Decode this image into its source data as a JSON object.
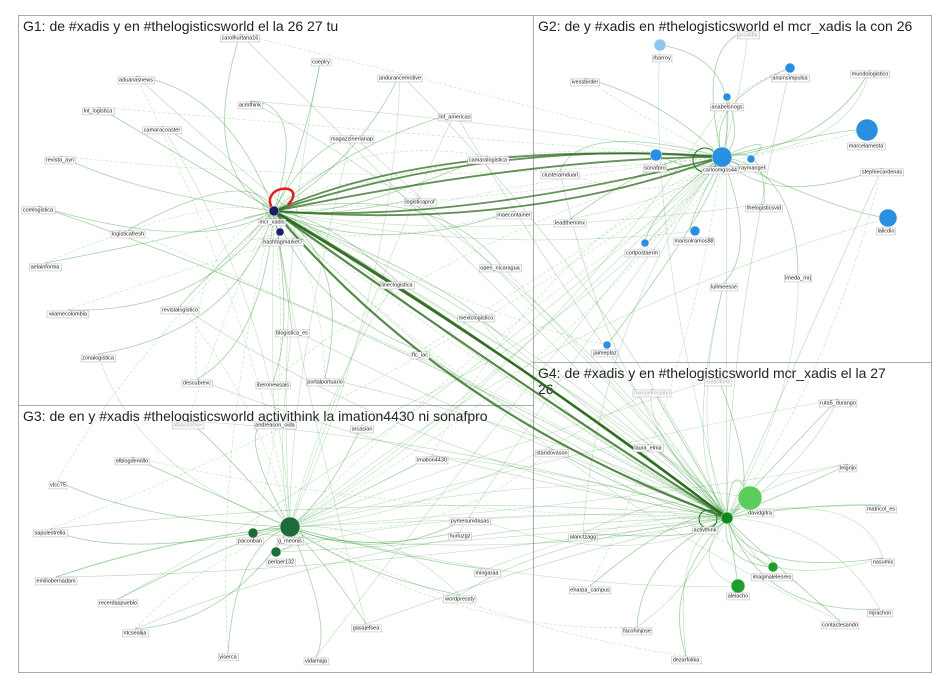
{
  "groups": [
    {
      "title": "G1: de #xadis y en #thelogisticsworld el la 26 27 tu",
      "nodes": [
        "carolhurtana16",
        "coeplry",
        "aduanasnews",
        "andurancemotive",
        "lnt_logistica",
        "acmthink",
        "lnf_americas",
        "magazzinerianap",
        "camaracoaster",
        "revista_ayn",
        "camaralogistica",
        "logisticaprof",
        "comlogistica",
        "mcr_xadis",
        "maecontainer",
        "logisticafresh",
        "hashtagmarket7",
        "aelainforma",
        "open_nicaragua",
        "lineclogistica",
        "revistalogistico",
        "mextclogistico",
        "wiamecolombia",
        "blogistica_es",
        "ftc_lac",
        "zonalogistica",
        "descubrevc",
        "portalportuario",
        "iberonewsais"
      ]
    },
    {
      "title": "G2: de y #xadis en #thelogisticsworld el mcr_xadis la con 26",
      "nodes": [
        "rbarroy",
        "prsaldia",
        "ansmsimpulsa",
        "mundologistico",
        "ivessbirder",
        "anabelsnogs",
        "marcelamesta",
        "sonafpro",
        "carlosmgss44",
        "raymangel",
        "stephiecardenas",
        "clusteramduari",
        "thelogisticsvid",
        "leadthemmx",
        "lalicdio",
        "cortpostaerm",
        "marisolramos88",
        "lmeda_mrj",
        "lullmeesse",
        "jaimeplaz"
      ]
    },
    {
      "title": "G3: de en y #xadis #thelogisticsworld activithink la imation4430 ni sonafpro",
      "nodes": [
        "albanzocker",
        "andreason_oida",
        "arcasian",
        "elblogdemillo",
        "imation4430",
        "vtcc75",
        "sapulestrella",
        "paconban",
        "g_meonis",
        "pymesunidasas",
        "hurluzgz",
        "perlaer132",
        "mingaraa",
        "emiliobernadam",
        "recerdaspueblo",
        "wordpressty",
        "ntcsealija",
        "gasajefsea",
        "yiserca",
        "vidamaja"
      ]
    },
    {
      "title": "G4: de #xadis y en #thelogisticsworld mcr_xadis el la 27 26",
      "nodes": [
        "manuelrespino",
        "ruedoforte",
        "ruta5_durango",
        "standovason",
        "laura_elma",
        "lelgrijo",
        "davidgitra",
        "activthink",
        "matricol_es",
        "alanctzagg",
        "imaginaleleoreo",
        "nasumis",
        "aleiacho",
        "eharpa_campus",
        "mjrachon",
        "facohinjose",
        "contactesando",
        "dezarfolika"
      ]
    }
  ]
}
